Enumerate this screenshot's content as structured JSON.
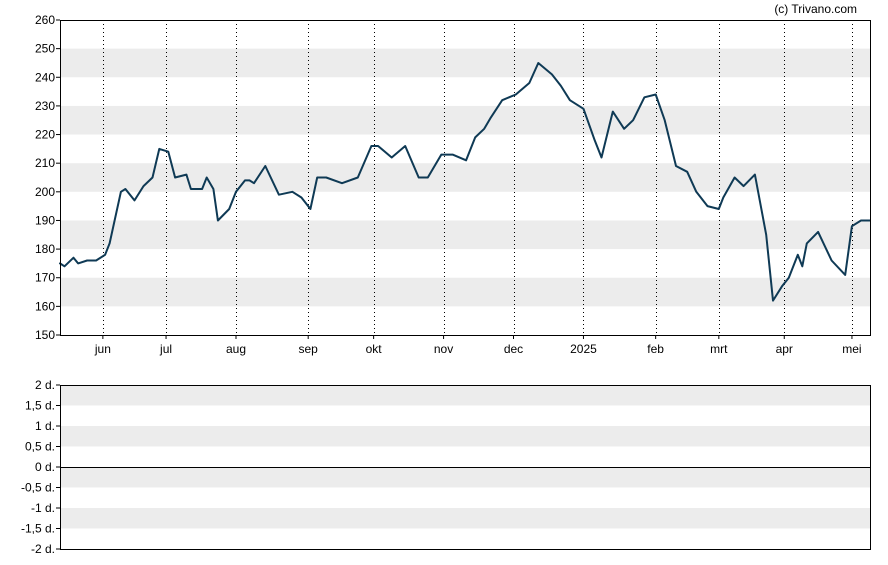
{
  "credit": "(c) Trivano.com",
  "colors": {
    "line": "#0f3a55",
    "band": "#ececec",
    "frame": "#000000",
    "grid": "#000000"
  },
  "chart_data": [
    {
      "type": "line",
      "ylim": [
        150,
        260
      ],
      "yticks": [
        150,
        160,
        170,
        180,
        190,
        200,
        210,
        220,
        230,
        240,
        250,
        260
      ],
      "ytick_labels": [
        "150",
        "160",
        "170",
        "180",
        "190",
        "200",
        "210",
        "220",
        "230",
        "240",
        "250",
        "260"
      ],
      "xlim": [
        "2024-05-15",
        "2025-05-09"
      ],
      "xticks": [
        "2024-06-03",
        "2024-07-01",
        "2024-08-01",
        "2024-09-02",
        "2024-10-01",
        "2024-11-01",
        "2024-12-02",
        "2025-01-02",
        "2025-02-03",
        "2025-03-03",
        "2025-04-01",
        "2025-05-01"
      ],
      "xtick_labels": [
        "jun",
        "jul",
        "aug",
        "sep",
        "okt",
        "nov",
        "dec",
        "2025",
        "feb",
        "mrt",
        "apr",
        "mei"
      ],
      "grid": "vertical dotted at month ticks, alternating horizontal bands",
      "series": [
        {
          "x": [
            "2024-05-15",
            "2024-05-17",
            "2024-05-21",
            "2024-05-23",
            "2024-05-27",
            "2024-05-31",
            "2024-06-04",
            "2024-06-06",
            "2024-06-11",
            "2024-06-13",
            "2024-06-17",
            "2024-06-21",
            "2024-06-25",
            "2024-06-28",
            "2024-07-02",
            "2024-07-05",
            "2024-07-10",
            "2024-07-12",
            "2024-07-17",
            "2024-07-19",
            "2024-07-22",
            "2024-07-24",
            "2024-07-29",
            "2024-08-01",
            "2024-08-05",
            "2024-08-07",
            "2024-08-09",
            "2024-08-14",
            "2024-08-20",
            "2024-08-26",
            "2024-08-30",
            "2024-09-03",
            "2024-09-06",
            "2024-09-10",
            "2024-09-17",
            "2024-09-24",
            "2024-09-30",
            "2024-10-03",
            "2024-10-09",
            "2024-10-15",
            "2024-10-21",
            "2024-10-25",
            "2024-10-31",
            "2024-11-05",
            "2024-11-11",
            "2024-11-15",
            "2024-11-19",
            "2024-11-22",
            "2024-11-27",
            "2024-12-03",
            "2024-12-09",
            "2024-12-13",
            "2024-12-19",
            "2024-12-23",
            "2024-12-27",
            "2025-01-02",
            "2025-01-07",
            "2025-01-10",
            "2025-01-15",
            "2025-01-20",
            "2025-01-24",
            "2025-01-29",
            "2025-02-03",
            "2025-02-07",
            "2025-02-12",
            "2025-02-17",
            "2025-02-21",
            "2025-02-26",
            "2025-03-03",
            "2025-03-05",
            "2025-03-10",
            "2025-03-14",
            "2025-03-19",
            "2025-03-24",
            "2025-03-27",
            "2025-03-31",
            "2025-04-03",
            "2025-04-07",
            "2025-04-09",
            "2025-04-11",
            "2025-04-16",
            "2025-04-22",
            "2025-04-28",
            "2025-05-01",
            "2025-05-05",
            "2025-05-09"
          ],
          "y": [
            175,
            174,
            177,
            175,
            176,
            176,
            178,
            182,
            200,
            201,
            197,
            202,
            205,
            215,
            214,
            205,
            206,
            201,
            201,
            205,
            201,
            190,
            194,
            200,
            204,
            204,
            203,
            209,
            199,
            200,
            198,
            194,
            205,
            205,
            203,
            205,
            216,
            216,
            212,
            216,
            205,
            205,
            213,
            213,
            211,
            219,
            222,
            226,
            232,
            234,
            238,
            245,
            241,
            237,
            232,
            229,
            218,
            212,
            228,
            222,
            225,
            233,
            234,
            225,
            209,
            207,
            200,
            195,
            194,
            198,
            205,
            202,
            206,
            185,
            162,
            167,
            170,
            178,
            174,
            182,
            186,
            176,
            171,
            188,
            190,
            190
          ]
        }
      ]
    },
    {
      "type": "line",
      "ylim": [
        -2,
        2
      ],
      "yticks": [
        -2,
        -1.5,
        -1,
        -0.5,
        0,
        0.5,
        1,
        1.5,
        2
      ],
      "ytick_labels": [
        "-2 d.",
        "-1,5 d.",
        "-1 d.",
        "-0,5 d.",
        "0 d.",
        "0,5 d.",
        "1 d.",
        "1,5 d.",
        "2 d."
      ],
      "series": []
    }
  ]
}
